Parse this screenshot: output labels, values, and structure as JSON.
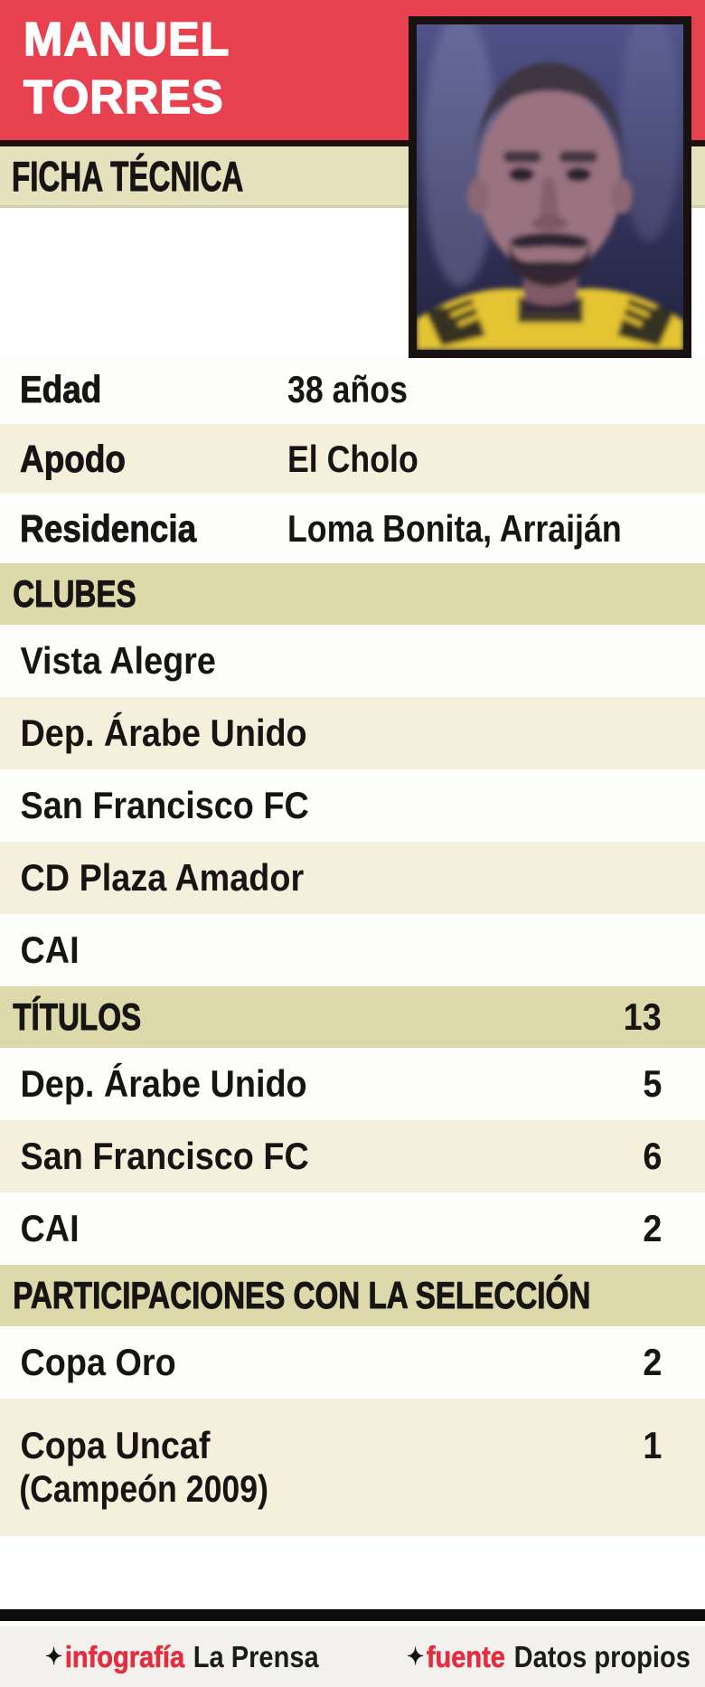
{
  "title": {
    "line1": "MANUEL",
    "line2": "TORRES"
  },
  "section_label": "FICHA TÉCNICA",
  "photo": {
    "description": "player-portrait"
  },
  "profile": {
    "rows": [
      {
        "label": "Edad",
        "value": "38 años"
      },
      {
        "label": "Apodo",
        "value": "El Cholo"
      },
      {
        "label": "Residencia",
        "value": "Loma Bonita, Arraiján"
      }
    ]
  },
  "sections": [
    {
      "header": "CLUBES",
      "header_value": "",
      "rows": [
        {
          "label": "Vista Alegre",
          "value": ""
        },
        {
          "label": "Dep. Árabe Unido",
          "value": ""
        },
        {
          "label": "San Francisco FC",
          "value": ""
        },
        {
          "label": "CD Plaza Amador",
          "value": ""
        },
        {
          "label": "CAI",
          "value": ""
        }
      ]
    },
    {
      "header": "TÍTULOS",
      "header_value": "13",
      "rows": [
        {
          "label": "Dep. Árabe Unido",
          "value": "5"
        },
        {
          "label": "San Francisco FC",
          "value": "6"
        },
        {
          "label": "CAI",
          "value": "2"
        }
      ]
    },
    {
      "header": "PARTICIPACIONES CON LA SELECCIÓN",
      "header_value": "",
      "rows": [
        {
          "label": "Copa Oro",
          "value": "2"
        },
        {
          "label": "Copa Uncaf",
          "value": "1",
          "note": "(Campeón 2009)"
        }
      ]
    }
  ],
  "footer": {
    "credits": [
      {
        "icon": "✦",
        "label": "infografía",
        "value": "La Prensa"
      },
      {
        "icon": "✦",
        "label": "fuente",
        "value": "Datos propios"
      }
    ]
  },
  "colors": {
    "banner_red": "#e7414f",
    "accent_red": "#e22e3f",
    "band_beige": "#e6e1bd",
    "header_beige": "#ded9ab",
    "row_beige": "#f4f0db",
    "row_white": "#fdfdfb",
    "rule_black": "#0e0c0b",
    "jersey_yellow": "#e4c433"
  }
}
